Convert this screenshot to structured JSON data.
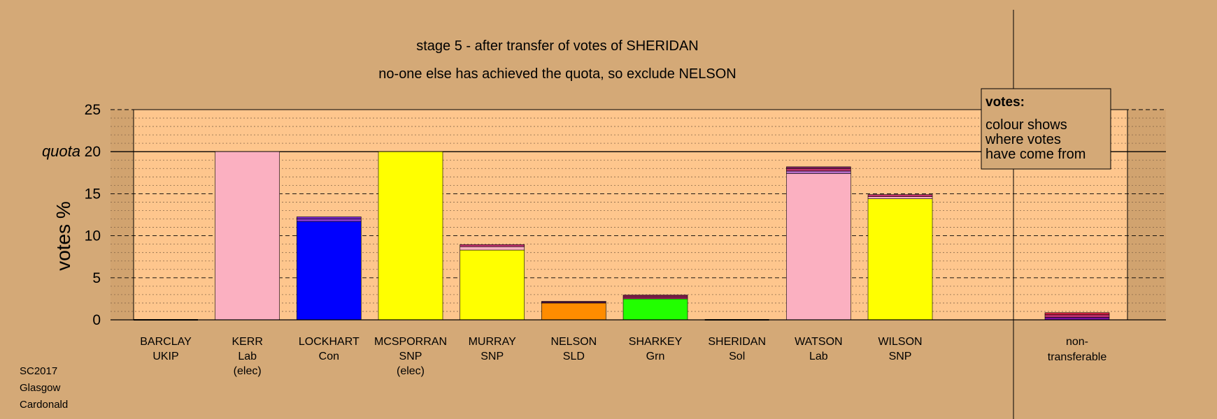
{
  "chart_data": {
    "type": "bar",
    "stacked": true,
    "title": "stage 5 - after transfer of votes of SHERIDAN",
    "subtitle": "no-one else has achieved the quota, so exclude NELSON",
    "ylabel": "votes %",
    "ylim": [
      0,
      25
    ],
    "yticks": [
      0,
      5,
      10,
      15,
      20,
      25
    ],
    "quota_value": 20,
    "quota_label": "quota",
    "grid": true,
    "legend": {
      "position": "top-right",
      "heading": "votes:",
      "lines": [
        "colour shows",
        "where votes",
        "have come from"
      ]
    },
    "candidates": [
      {
        "name": "BARCLAY",
        "party": "UKIP",
        "note": "",
        "segments": []
      },
      {
        "name": "KERR",
        "party": "Lab",
        "note": "(elec)",
        "segments": [
          {
            "value": 20.0,
            "color": "#fbb0c1"
          }
        ]
      },
      {
        "name": "LOCKHART",
        "party": "Con",
        "note": "",
        "segments": [
          {
            "value": 11.7,
            "color": "#0000ff"
          },
          {
            "value": 0.3,
            "color": "#8a3ad0"
          },
          {
            "value": 0.25,
            "color": "#7a2ad0"
          }
        ]
      },
      {
        "name": "MCSPORRAN",
        "party": "SNP",
        "note": "(elec)",
        "segments": [
          {
            "value": 20.0,
            "color": "#ffff00"
          }
        ]
      },
      {
        "name": "MURRAY",
        "party": "SNP",
        "note": "",
        "segments": [
          {
            "value": 8.3,
            "color": "#ffff00"
          },
          {
            "value": 0.4,
            "color": "#fbb0c1"
          },
          {
            "value": 0.25,
            "color": "#c0306e"
          }
        ]
      },
      {
        "name": "NELSON",
        "party": "SLD",
        "note": "",
        "segments": [
          {
            "value": 2.0,
            "color": "#ff8c00"
          },
          {
            "value": 0.2,
            "color": "#4a1040"
          }
        ]
      },
      {
        "name": "SHARKEY",
        "party": "Grn",
        "note": "",
        "segments": [
          {
            "value": 2.5,
            "color": "#22ff00"
          },
          {
            "value": 0.2,
            "color": "#c0306e"
          },
          {
            "value": 0.25,
            "color": "#8a2050"
          }
        ]
      },
      {
        "name": "SHERIDAN",
        "party": "Sol",
        "note": "",
        "segments": []
      },
      {
        "name": "WATSON",
        "party": "Lab",
        "note": "",
        "segments": [
          {
            "value": 17.4,
            "color": "#fbb0c1"
          },
          {
            "value": 0.3,
            "color": "#b76ec8"
          },
          {
            "value": 0.3,
            "color": "#c0306e"
          },
          {
            "value": 0.2,
            "color": "#7a2060"
          }
        ]
      },
      {
        "name": "WILSON",
        "party": "SNP",
        "note": "",
        "segments": [
          {
            "value": 14.4,
            "color": "#ffff00"
          },
          {
            "value": 0.25,
            "color": "#fbb0c1"
          },
          {
            "value": 0.25,
            "color": "#c0306e"
          }
        ]
      }
    ],
    "nontransferable": {
      "label_line1": "non-",
      "label_line2": "transferable",
      "segments": [
        {
          "value": 0.3,
          "color": "#7a10a0"
        },
        {
          "value": 0.3,
          "color": "#c0306e"
        },
        {
          "value": 0.25,
          "color": "#d02040"
        }
      ]
    }
  },
  "footer": {
    "line1": "SC2017",
    "line2": "Glasgow",
    "line3": "Cardonald"
  },
  "colors": {
    "background": "#d4a977",
    "plot_area": "#fec68d",
    "outer_band": "#d1a36f"
  }
}
